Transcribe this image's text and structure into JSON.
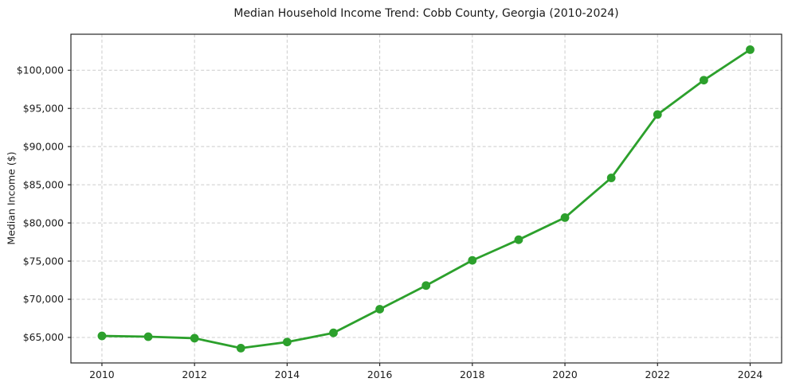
{
  "chart_data": {
    "type": "line",
    "title": "Median Household Income Trend: Cobb County, Georgia (2010-2024)",
    "xlabel": "",
    "ylabel": "Median Income ($)",
    "x": [
      2010,
      2011,
      2012,
      2013,
      2014,
      2015,
      2016,
      2017,
      2018,
      2019,
      2020,
      2021,
      2022,
      2023,
      2024
    ],
    "series": [
      {
        "name": "Median Household Income",
        "values": [
          65200,
          65100,
          64900,
          63600,
          64400,
          65600,
          68700,
          71800,
          75100,
          77800,
          80700,
          85900,
          94200,
          98700,
          102700
        ]
      }
    ],
    "x_tick_values": [
      2010,
      2012,
      2014,
      2016,
      2018,
      2020,
      2022,
      2024
    ],
    "x_tick_labels": [
      "2010",
      "2012",
      "2014",
      "2016",
      "2018",
      "2020",
      "2022",
      "2024"
    ],
    "y_tick_values": [
      65000,
      70000,
      75000,
      80000,
      85000,
      90000,
      95000,
      100000
    ],
    "y_tick_labels": [
      "$65,000",
      "$70,000",
      "$75,000",
      "$80,000",
      "$85,000",
      "$90,000",
      "$95,000",
      "$100,000"
    ],
    "xlim": [
      2009.33,
      2024.68
    ],
    "ylim": [
      61660,
      104720
    ],
    "grid": true,
    "grid_style": "dashed",
    "legend_position": "none",
    "marker": "circle",
    "colors": {
      "line": "#2ca02c",
      "marker": "#2ca02c",
      "grid": "#cccccc",
      "spine": "#262626",
      "text": "#1a1a1a",
      "background": "#ffffff"
    }
  }
}
